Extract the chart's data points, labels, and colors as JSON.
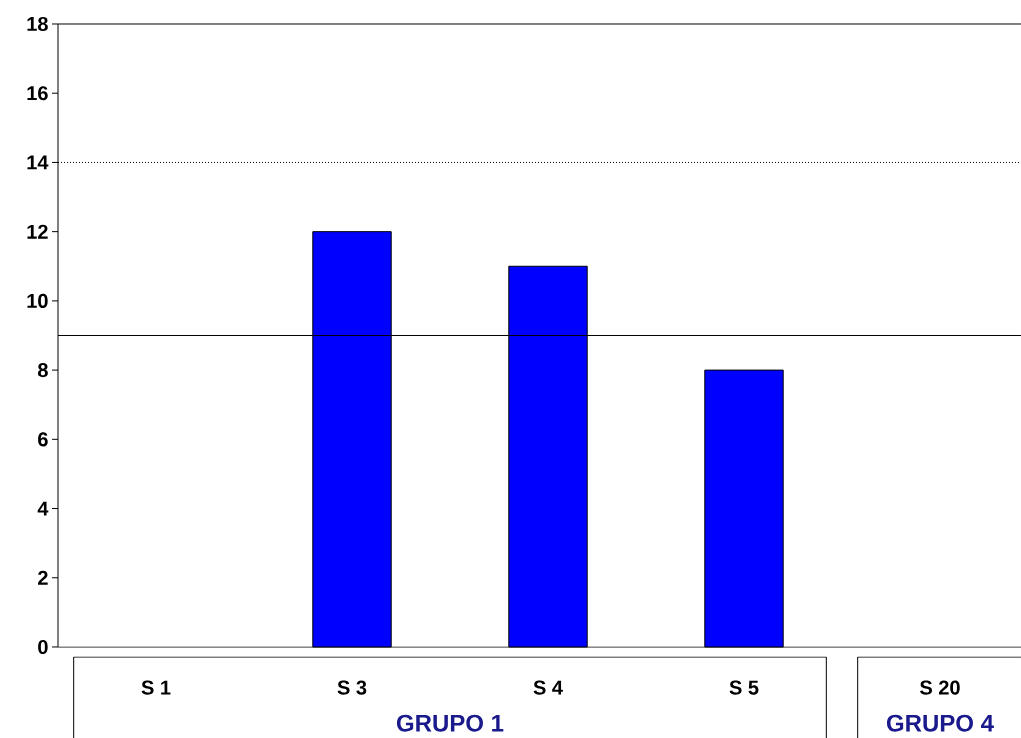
{
  "chart_data": {
    "type": "bar",
    "categories": [
      "S 1",
      "S 3",
      "S 4",
      "S 5",
      "S 20"
    ],
    "values": [
      null,
      12,
      11,
      8,
      null
    ],
    "color": "#0000ff",
    "ylim": [
      0,
      18
    ],
    "yticks": [
      0,
      2,
      4,
      6,
      8,
      10,
      12,
      14,
      16,
      18
    ],
    "ref_lines": [
      {
        "axis": "y",
        "value": 9,
        "color": "#000000",
        "line_style": "solid"
      },
      {
        "axis": "y",
        "value": 14,
        "color": "#000000",
        "line_style": "dotted"
      }
    ],
    "annotations": [
      "GRUPO 1",
      "GRUPO 4"
    ]
  }
}
